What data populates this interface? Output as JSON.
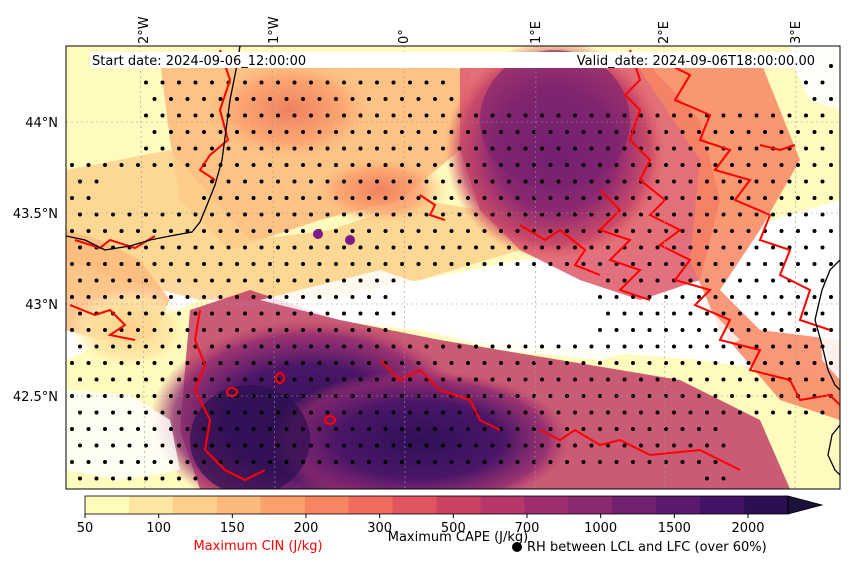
{
  "map": {
    "start_date": "Start date: 2024-09-06_12:00:00",
    "valid_date": "Valid_date: 2024-09-06T18:00:00.00",
    "lon_labels": [
      "2°W",
      "1°W",
      "0°",
      "1°E",
      "2°E",
      "3°E"
    ],
    "lat_labels": [
      "44°N",
      "43.5°N",
      "43°N",
      "42.5°N"
    ]
  },
  "colorbar": {
    "ticks": [
      "50",
      "100",
      "150",
      "200",
      "300",
      "500",
      "700",
      "1000",
      "1500",
      "2000"
    ],
    "cape_label": "Maximum CAPE (J/kg)",
    "cin_label": "Maximum CIN (J/kg)",
    "rh_label": "RH between LCL and LFC (over 60%)",
    "colors": [
      "#fffbb8",
      "#fee6a2",
      "#fdd08a",
      "#fcb97a",
      "#fca06c",
      "#f88562",
      "#f06b5e",
      "#e0555f",
      "#cb4265",
      "#b7376a",
      "#a02e6e",
      "#8a2870",
      "#722070",
      "#5a196e",
      "#431365",
      "#2b0f50"
    ],
    "extend_color": "#1c1139"
  },
  "colors": {
    "cin_contour": "#ff0000",
    "coast": "#000000",
    "dots": "#000000",
    "marker": "#7a1b86"
  }
}
